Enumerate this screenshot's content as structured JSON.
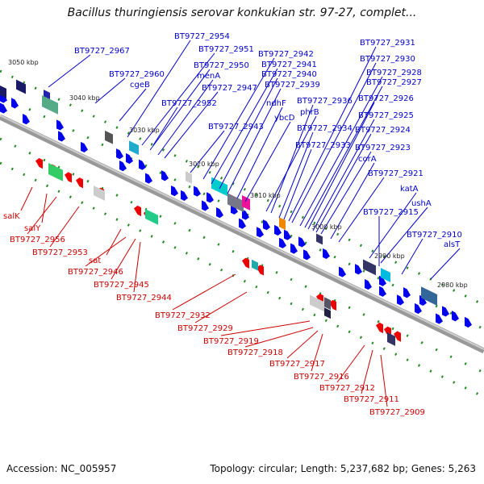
{
  "title": "Bacillus thuringiensis serovar konkukian str. 97-27, complet...",
  "accession": "Accession: NC_005957",
  "topology": "Topology: circular; Length: 5,237,682 bp; Genes: 5,263",
  "kbp_labels": [
    {
      "text": "3050 kbp",
      "pos": "ring-upper"
    },
    {
      "text": "3040 kbp",
      "pos": "ring-upper"
    },
    {
      "text": "3030 kbp",
      "pos": "ring-upper"
    },
    {
      "text": "3020 kbp",
      "pos": "ring-upper"
    },
    {
      "text": "3010 kbp",
      "pos": "ring-upper"
    },
    {
      "text": "3000 kbp",
      "pos": "ring-upper"
    },
    {
      "text": "2990 kbp",
      "pos": "ring-upper"
    },
    {
      "text": "2980 kbp",
      "pos": "ring-upper"
    }
  ],
  "top_labels": [
    "BT9727_2967",
    "BT9727_2960",
    "cgeB",
    "BT9727_2954",
    "BT9727_2951",
    "BT9727_2950",
    "menA",
    "BT9727_2947",
    "BT9727_2952",
    "BT9727_2943",
    "BT9727_2942",
    "BT9727_2941",
    "BT9727_2940",
    "BT9727_2939",
    "ndhF",
    "ybcD",
    "phrB",
    "BT9727_2936",
    "BT9727_2934",
    "BT9727_2933",
    "BT9727_2931",
    "BT9727_2930",
    "BT9727_2928",
    "BT9727_2927",
    "BT9727_2926",
    "BT9727_2925",
    "BT9727_2924",
    "BT9727_2923",
    "corA",
    "BT9727_2921",
    "katA",
    "ushA",
    "BT9727_2915",
    "BT9727_2910",
    "alsT"
  ],
  "bottom_labels": [
    "salK",
    "salY",
    "BT9727_2956",
    "BT9727_2953",
    "sat",
    "BT9727_2946",
    "BT9727_2945",
    "BT9727_2944",
    "BT9727_2932",
    "BT9727_2929",
    "BT9727_2919",
    "BT9727_2918",
    "BT9727_2917",
    "BT9727_2916",
    "BT9727_2912",
    "BT9727_2911",
    "BT9727_2909"
  ],
  "colors": {
    "forward": "#0000ee",
    "reverse": "#ee0000",
    "backbone": "#888888",
    "tick": "#228b22"
  }
}
